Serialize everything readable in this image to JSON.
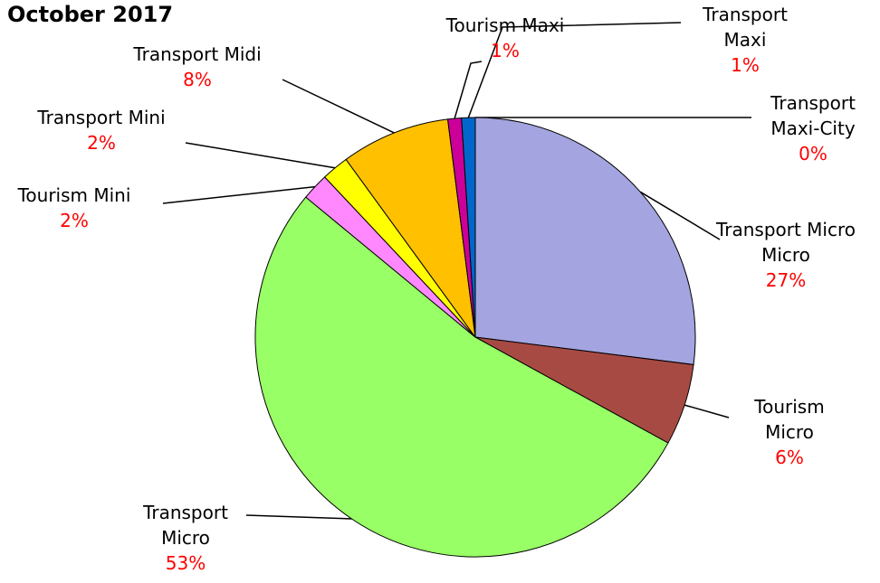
{
  "chart_data": {
    "type": "pie",
    "title": "October 2017",
    "categories": [
      "Transport Maxi-City",
      "Transport Micro Micro",
      "Tourism Micro",
      "Transport Micro",
      "Tourism Mini",
      "Transport Mini",
      "Transport Midi",
      "Tourism Maxi",
      "Transport Maxi"
    ],
    "values": [
      0,
      27,
      6,
      53,
      2,
      2,
      8,
      1,
      1
    ],
    "value_labels": [
      "0%",
      "27%",
      "6%",
      "53%",
      "2%",
      "2%",
      "8%",
      "1%",
      "1%"
    ],
    "colors": [
      "#000080",
      "#a4a4e0",
      "#a84a44",
      "#99ff66",
      "#ff88ff",
      "#ffff00",
      "#ffc000",
      "#cc0099",
      "#0066cc"
    ]
  }
}
